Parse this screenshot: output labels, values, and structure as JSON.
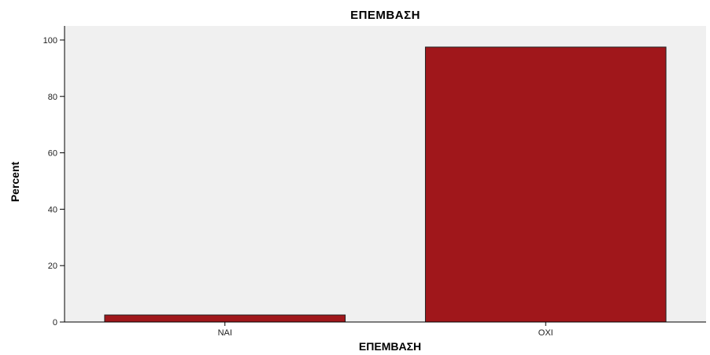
{
  "chart_data": {
    "type": "bar",
    "title": "ΕΠΕΜΒΑΣΗ",
    "xlabel": "ΕΠΕΜΒΑΣΗ",
    "ylabel": "Percent",
    "categories": [
      "ΝΑΙ",
      "ΟΧΙ"
    ],
    "values": [
      2.5,
      97.5
    ],
    "ylim": [
      0,
      105
    ],
    "yticks": [
      0,
      20,
      40,
      60,
      80,
      100
    ],
    "grid": false,
    "legend": "none"
  },
  "colors": {
    "bar_fill": "#a0171b",
    "bar_stroke": "#222222",
    "plot_background": "#f0f0f0",
    "axis": "#000000"
  }
}
